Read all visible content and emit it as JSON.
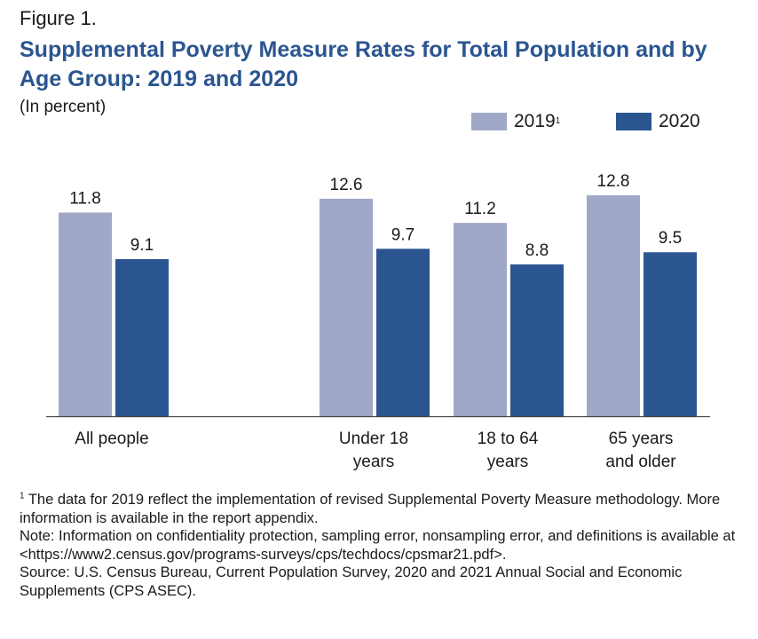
{
  "figure": {
    "label": "Figure 1.",
    "title": "Supplemental Poverty Measure Rates for Total Population and by Age Group: 2019 and 2020",
    "subtitle": "(In percent)"
  },
  "colors": {
    "series_2019": "#a0a8c8",
    "series_2020": "#2b5591",
    "axis": "#444444"
  },
  "chart_data": {
    "type": "bar",
    "categories": [
      "All people",
      "Under 18 years",
      "18 to 64 years",
      "65 years and older"
    ],
    "category_lines": [
      [
        "All people"
      ],
      [
        "Under 18",
        "years"
      ],
      [
        "18 to 64",
        "years"
      ],
      [
        "65 years",
        "and older"
      ]
    ],
    "series": [
      {
        "name": "2019",
        "name_sup": "1",
        "values": [
          11.8,
          12.6,
          11.2,
          12.8
        ],
        "labels": [
          "11.8",
          "12.6",
          "11.2",
          "12.8"
        ]
      },
      {
        "name": "2020",
        "name_sup": "",
        "values": [
          9.1,
          9.7,
          8.8,
          9.5
        ],
        "labels": [
          "9.1",
          "9.7",
          "8.8",
          "9.5"
        ]
      }
    ],
    "ylabel": "In percent",
    "legend_position": "top-right",
    "grid": false
  },
  "footnotes": {
    "note1_marker": "1",
    "note1_text": " The data for 2019 reflect the implementation of revised Supplemental Poverty Measure methodology. More information is available in the report appendix.",
    "note2": "Note: Information on confidentiality protection, sampling error, nonsampling error, and definitions is available at <https://www2.census.gov/programs-surveys/cps/techdocs/cpsmar21.pdf>.",
    "source": "Source: U.S. Census Bureau, Current Population Survey, 2020 and 2021 Annual Social and Economic Supplements (CPS ASEC)."
  }
}
